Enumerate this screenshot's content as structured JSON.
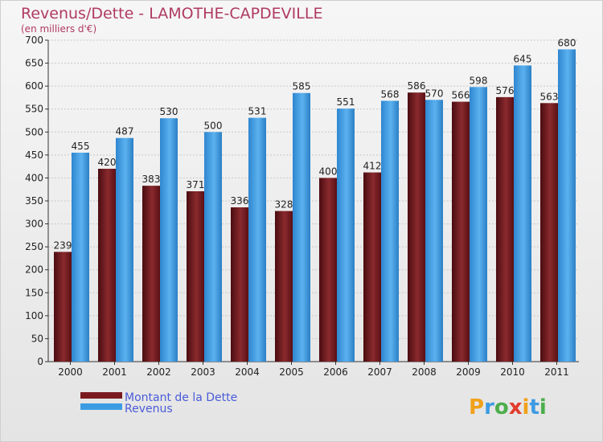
{
  "header": {
    "title": "Revenus/Dette - LAMOTHE-CAPDEVILLE",
    "subtitle": "(en milliers d'€)"
  },
  "chart_data": {
    "type": "bar",
    "categories": [
      "2000",
      "2001",
      "2002",
      "2003",
      "2004",
      "2005",
      "2006",
      "2007",
      "2008",
      "2009",
      "2010",
      "2011"
    ],
    "series": [
      {
        "name": "Montant de la Dette",
        "color": "#7b1a1e",
        "values": [
          239,
          420,
          383,
          371,
          336,
          328,
          400,
          412,
          586,
          566,
          576,
          563
        ]
      },
      {
        "name": "Revenus",
        "color": "#3d9be3",
        "values": [
          455,
          487,
          530,
          500,
          531,
          585,
          551,
          568,
          570,
          598,
          645,
          680
        ]
      }
    ],
    "ylim": [
      0,
      700
    ],
    "ytick_step": 50,
    "grid": true,
    "legend_position": "bottom-left"
  },
  "logo": {
    "letters": [
      "P",
      "r",
      "o",
      "x",
      "i",
      "t",
      "i"
    ],
    "colors": [
      "#f0a11a",
      "#3d9be3",
      "#4cae4c",
      "#e23c2c",
      "#f0a11a",
      "#3d9be3",
      "#4cae4c"
    ]
  }
}
